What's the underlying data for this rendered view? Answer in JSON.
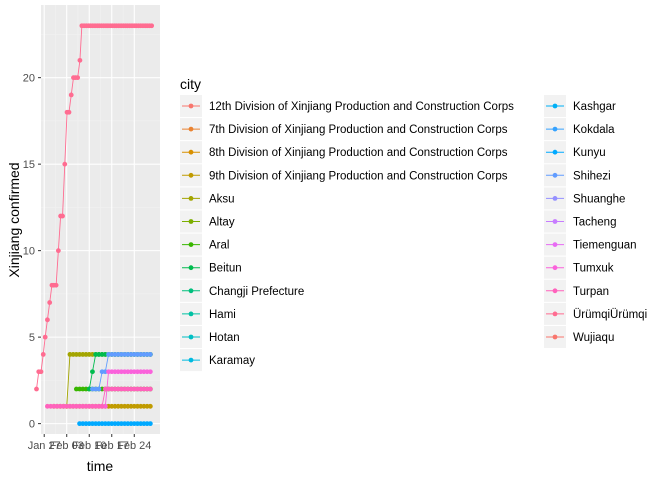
{
  "chart_data": {
    "type": "line",
    "title": "",
    "xlabel": "time",
    "ylabel": "Xinjiang  confirmed",
    "ylim": [
      -0.6,
      24.2
    ],
    "xlim": [
      -1,
      36
    ],
    "x_ticks": [
      {
        "label": "Jan 27",
        "day": 0
      },
      {
        "label": "Feb 03",
        "day": 7
      },
      {
        "label": "Feb 10",
        "day": 14
      },
      {
        "label": "Feb 17",
        "day": 21
      },
      {
        "label": "Feb 24",
        "day": 28
      }
    ],
    "y_ticks": [
      0,
      5,
      10,
      15,
      20
    ],
    "grid": true,
    "legend_title": "city",
    "legend_placement": "right",
    "colors": {
      "panel": "#ebebeb",
      "grid_major": "#ffffff",
      "grid_minor": "#f2f2f2",
      "tick_text": "#4d4d4d"
    },
    "series": [
      {
        "name": "12th Division of Xinjiang Production and Construction Corps",
        "color": "#F8766D",
        "points": []
      },
      {
        "name": "7th Division of Xinjiang Production and Construction Corps",
        "color": "#EA8331",
        "points": []
      },
      {
        "name": "8th Division of Xinjiang Production and Construction Corps",
        "color": "#D89000",
        "points": []
      },
      {
        "name": "9th Division of Xinjiang Production and Construction Corps",
        "color": "#C09B00",
        "points": [
          [
            3,
            1
          ],
          [
            4,
            1
          ],
          [
            5,
            1
          ],
          [
            6,
            1
          ],
          [
            7,
            1
          ],
          [
            8,
            1
          ],
          [
            9,
            1
          ],
          [
            10,
            1
          ],
          [
            11,
            1
          ],
          [
            12,
            1
          ],
          [
            13,
            1
          ],
          [
            14,
            1
          ],
          [
            15,
            1
          ],
          [
            16,
            1
          ],
          [
            17,
            1
          ],
          [
            18,
            1
          ],
          [
            19,
            1
          ],
          [
            20,
            1
          ],
          [
            21,
            1
          ],
          [
            22,
            1
          ],
          [
            23,
            1
          ],
          [
            24,
            1
          ],
          [
            25,
            1
          ],
          [
            26,
            1
          ],
          [
            27,
            1
          ],
          [
            28,
            1
          ],
          [
            29,
            1
          ],
          [
            30,
            1
          ],
          [
            31,
            1
          ],
          [
            32,
            1
          ],
          [
            33,
            1
          ]
        ]
      },
      {
        "name": "Aksu",
        "color": "#A3A500",
        "points": [
          [
            7,
            1
          ],
          [
            8,
            4
          ],
          [
            9,
            4
          ],
          [
            10,
            4
          ],
          [
            11,
            4
          ],
          [
            12,
            4
          ],
          [
            13,
            4
          ],
          [
            14,
            4
          ],
          [
            15,
            4
          ],
          [
            16,
            4
          ],
          [
            17,
            4
          ],
          [
            18,
            4
          ],
          [
            19,
            4
          ],
          [
            20,
            4
          ],
          [
            21,
            4
          ],
          [
            22,
            4
          ],
          [
            23,
            4
          ],
          [
            24,
            4
          ],
          [
            25,
            4
          ],
          [
            26,
            4
          ],
          [
            27,
            4
          ],
          [
            28,
            4
          ],
          [
            29,
            4
          ],
          [
            30,
            4
          ],
          [
            31,
            4
          ],
          [
            32,
            4
          ],
          [
            33,
            4
          ]
        ]
      },
      {
        "name": "Altay",
        "color": "#7CAE00",
        "points": []
      },
      {
        "name": "Aral",
        "color": "#39B600",
        "points": [
          [
            10,
            2
          ],
          [
            11,
            2
          ],
          [
            12,
            2
          ],
          [
            13,
            2
          ],
          [
            14,
            2
          ],
          [
            15,
            2
          ],
          [
            16,
            2
          ],
          [
            17,
            2
          ],
          [
            18,
            2
          ],
          [
            19,
            2
          ],
          [
            20,
            2
          ],
          [
            21,
            2
          ],
          [
            22,
            2
          ],
          [
            23,
            2
          ],
          [
            24,
            2
          ],
          [
            25,
            2
          ],
          [
            26,
            2
          ],
          [
            27,
            2
          ],
          [
            28,
            2
          ],
          [
            29,
            2
          ],
          [
            30,
            2
          ],
          [
            31,
            2
          ],
          [
            32,
            2
          ],
          [
            33,
            2
          ]
        ]
      },
      {
        "name": "Beitun",
        "color": "#00BB4E",
        "points": [
          [
            14,
            2
          ],
          [
            15,
            3
          ],
          [
            16,
            4
          ],
          [
            17,
            4
          ],
          [
            18,
            4
          ],
          [
            19,
            4
          ],
          [
            20,
            4
          ],
          [
            21,
            4
          ],
          [
            22,
            4
          ],
          [
            23,
            4
          ],
          [
            24,
            4
          ],
          [
            25,
            4
          ],
          [
            26,
            4
          ],
          [
            27,
            4
          ],
          [
            28,
            4
          ],
          [
            29,
            4
          ],
          [
            30,
            4
          ],
          [
            31,
            4
          ],
          [
            32,
            4
          ],
          [
            33,
            4
          ]
        ]
      },
      {
        "name": "Changji Prefecture",
        "color": "#00BF7D",
        "points": []
      },
      {
        "name": "Hami",
        "color": "#00C1A3",
        "points": []
      },
      {
        "name": "Hotan",
        "color": "#00BFC4",
        "points": []
      },
      {
        "name": "Karamay",
        "color": "#00BAE0",
        "points": []
      },
      {
        "name": "Kashgar",
        "color": "#00B0F6",
        "points": []
      },
      {
        "name": "Kokdala",
        "color": "#35A2FF",
        "points": []
      },
      {
        "name": "Kunyu",
        "color": "#00A9FF",
        "points": [
          [
            11,
            0
          ],
          [
            12,
            0
          ],
          [
            13,
            0
          ],
          [
            14,
            0
          ],
          [
            15,
            0
          ],
          [
            16,
            0
          ],
          [
            17,
            0
          ],
          [
            18,
            0
          ],
          [
            19,
            0
          ],
          [
            20,
            0
          ],
          [
            21,
            0
          ],
          [
            22,
            0
          ],
          [
            23,
            0
          ],
          [
            24,
            0
          ],
          [
            25,
            0
          ],
          [
            26,
            0
          ],
          [
            27,
            0
          ],
          [
            28,
            0
          ],
          [
            29,
            0
          ],
          [
            30,
            0
          ],
          [
            31,
            0
          ],
          [
            32,
            0
          ],
          [
            33,
            0
          ]
        ]
      },
      {
        "name": "Shihezi",
        "color": "#619CFF",
        "points": [
          [
            15,
            2
          ],
          [
            16,
            2
          ],
          [
            17,
            2
          ],
          [
            18,
            3
          ],
          [
            19,
            3
          ],
          [
            20,
            4
          ],
          [
            21,
            4
          ],
          [
            22,
            4
          ],
          [
            23,
            4
          ],
          [
            24,
            4
          ],
          [
            25,
            4
          ],
          [
            26,
            4
          ],
          [
            27,
            4
          ],
          [
            28,
            4
          ],
          [
            29,
            4
          ],
          [
            30,
            4
          ],
          [
            31,
            4
          ],
          [
            32,
            4
          ],
          [
            33,
            4
          ]
        ]
      },
      {
        "name": "Shuanghe",
        "color": "#9590FF",
        "points": []
      },
      {
        "name": "Tacheng",
        "color": "#C77CFF",
        "points": []
      },
      {
        "name": "Tiemenguan",
        "color": "#E76BF3",
        "points": []
      },
      {
        "name": "Tumxuk",
        "color": "#FA62DB",
        "points": [
          [
            18,
            1
          ],
          [
            19,
            1
          ],
          [
            20,
            3
          ],
          [
            21,
            3
          ],
          [
            22,
            3
          ],
          [
            23,
            3
          ],
          [
            24,
            3
          ],
          [
            25,
            3
          ],
          [
            26,
            3
          ],
          [
            27,
            3
          ],
          [
            28,
            3
          ],
          [
            29,
            3
          ],
          [
            30,
            3
          ],
          [
            31,
            3
          ],
          [
            32,
            3
          ],
          [
            33,
            3
          ]
        ]
      },
      {
        "name": "Turpan",
        "color": "#FF62BC",
        "points": [
          [
            1,
            1
          ],
          [
            2,
            1
          ],
          [
            3,
            1
          ],
          [
            4,
            1
          ],
          [
            5,
            1
          ],
          [
            6,
            1
          ],
          [
            7,
            1
          ],
          [
            8,
            1
          ],
          [
            9,
            1
          ],
          [
            10,
            1
          ],
          [
            11,
            1
          ],
          [
            12,
            1
          ],
          [
            13,
            1
          ],
          [
            14,
            1
          ],
          [
            15,
            1
          ],
          [
            16,
            1
          ],
          [
            17,
            1
          ],
          [
            18,
            1
          ],
          [
            19,
            2
          ],
          [
            20,
            2
          ],
          [
            21,
            2
          ],
          [
            22,
            2
          ],
          [
            23,
            2
          ],
          [
            24,
            2
          ],
          [
            25,
            2
          ],
          [
            26,
            2
          ],
          [
            27,
            2
          ],
          [
            28,
            2
          ],
          [
            29,
            2
          ],
          [
            30,
            2
          ],
          [
            31,
            2
          ],
          [
            32,
            2
          ],
          [
            33,
            2
          ]
        ]
      },
      {
        "name": "ÜrümqiÜrümqi",
        "color": "#FF6C91",
        "points": [
          [
            -2.4,
            2
          ],
          [
            -1.7,
            3
          ],
          [
            -1,
            3
          ],
          [
            -0.3,
            4
          ],
          [
            0.3,
            5
          ],
          [
            1,
            6
          ],
          [
            1.7,
            7
          ],
          [
            2.4,
            8
          ],
          [
            3,
            8
          ],
          [
            3.7,
            8
          ],
          [
            4.4,
            10
          ],
          [
            5.1,
            12
          ],
          [
            5.7,
            12
          ],
          [
            6.4,
            15
          ],
          [
            7.1,
            18
          ],
          [
            7.7,
            18
          ],
          [
            8.4,
            19
          ],
          [
            9.1,
            20
          ],
          [
            9.7,
            20
          ],
          [
            10.4,
            20
          ],
          [
            11.1,
            21
          ],
          [
            11.7,
            23
          ],
          [
            12.4,
            23
          ],
          [
            13.1,
            23
          ],
          [
            13.8,
            23
          ],
          [
            14.4,
            23
          ],
          [
            15.1,
            23
          ],
          [
            15.8,
            23
          ],
          [
            16.5,
            23
          ],
          [
            17.1,
            23
          ],
          [
            17.8,
            23
          ],
          [
            18.5,
            23
          ],
          [
            19.2,
            23
          ],
          [
            19.8,
            23
          ],
          [
            20.5,
            23
          ],
          [
            21.2,
            23
          ],
          [
            21.9,
            23
          ],
          [
            22.5,
            23
          ],
          [
            23.2,
            23
          ],
          [
            23.9,
            23
          ],
          [
            24.6,
            23
          ],
          [
            25.3,
            23
          ],
          [
            25.9,
            23
          ],
          [
            26.6,
            23
          ],
          [
            27.3,
            23
          ],
          [
            28,
            23
          ],
          [
            28.6,
            23
          ],
          [
            29.3,
            23
          ],
          [
            30,
            23
          ],
          [
            30.7,
            23
          ],
          [
            31.4,
            23
          ],
          [
            32,
            23
          ],
          [
            32.7,
            23
          ],
          [
            33.4,
            23
          ]
        ]
      },
      {
        "name": "Wujiaqu",
        "color": "#F8766D",
        "points": []
      }
    ]
  }
}
